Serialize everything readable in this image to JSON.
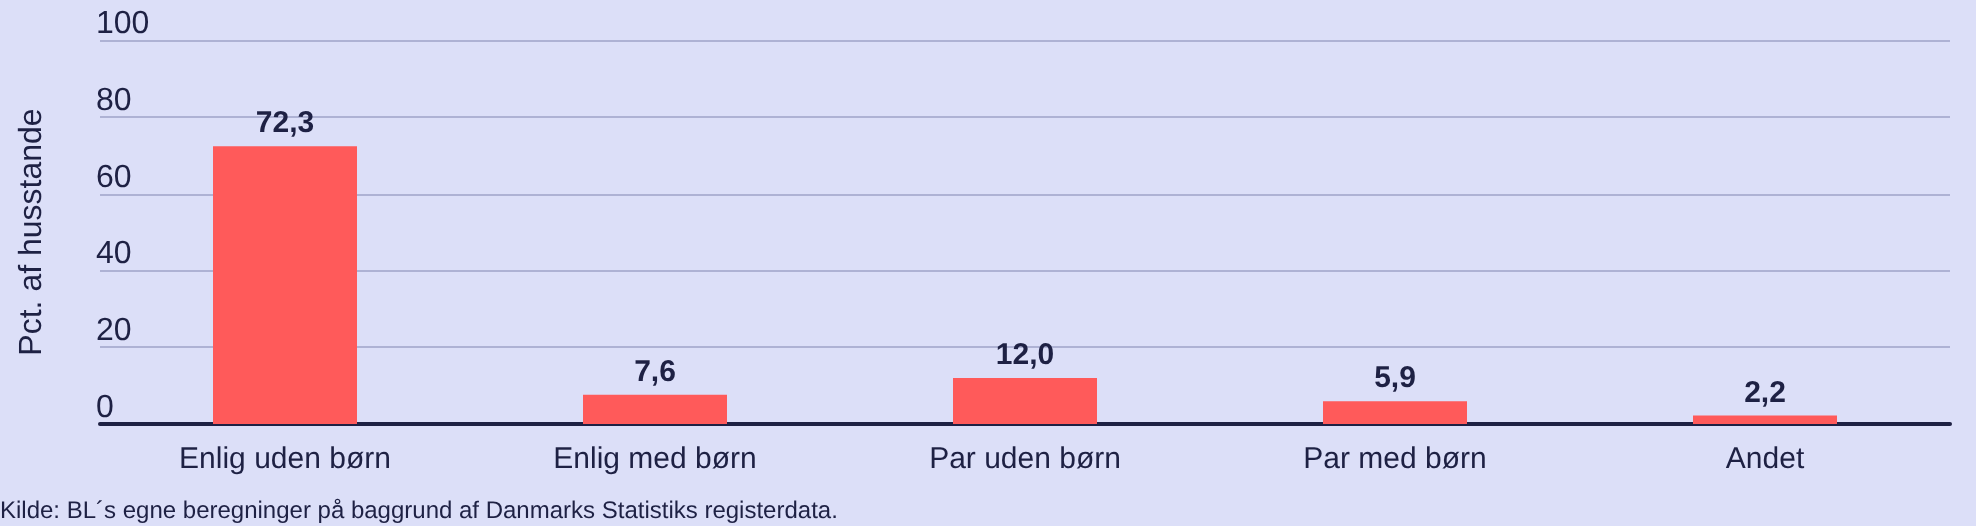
{
  "chart_data": {
    "type": "bar",
    "categories": [
      "Enlig uden børn",
      "Enlig med børn",
      "Par uden børn",
      "Par med børn",
      "Andet"
    ],
    "values": [
      72.3,
      7.6,
      12.0,
      5.9,
      2.2
    ],
    "value_labels": [
      "72,3",
      "7,6",
      "12,0",
      "5,9",
      "2,2"
    ],
    "color": "#ff5a5a",
    "ylabel": "Pct. af husstande",
    "ylim": [
      0,
      100
    ],
    "yticks": [
      0,
      20,
      40,
      60,
      80,
      100
    ],
    "grid": "y",
    "annotations": [
      "Kilde: BL´s egne beregninger på baggrund af Danmarks Statistiks registerdata."
    ]
  }
}
